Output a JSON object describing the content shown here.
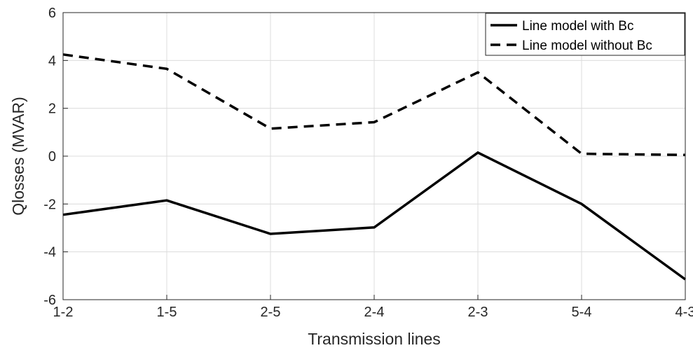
{
  "chart_data": {
    "type": "line",
    "categories": [
      "1-2",
      "1-5",
      "2-5",
      "2-4",
      "2-3",
      "5-4",
      "4-3"
    ],
    "series": [
      {
        "name": "Line model with Bc",
        "values": [
          -2.45,
          -1.85,
          -3.25,
          -2.98,
          0.15,
          -2.0,
          -5.15
        ],
        "color": "#000000",
        "dash": "solid"
      },
      {
        "name": "Line model without Bc",
        "values": [
          4.25,
          3.65,
          1.15,
          1.42,
          3.5,
          0.1,
          0.05
        ],
        "color": "#000000",
        "dash": "dashed"
      }
    ],
    "title": "",
    "xlabel": "Transmission lines",
    "ylabel": "Qlosses (MVAR)",
    "ylim": [
      -6,
      6
    ],
    "yticks": [
      -6,
      -4,
      -2,
      0,
      2,
      4,
      6
    ],
    "grid": true,
    "legend_position": "top-right"
  }
}
